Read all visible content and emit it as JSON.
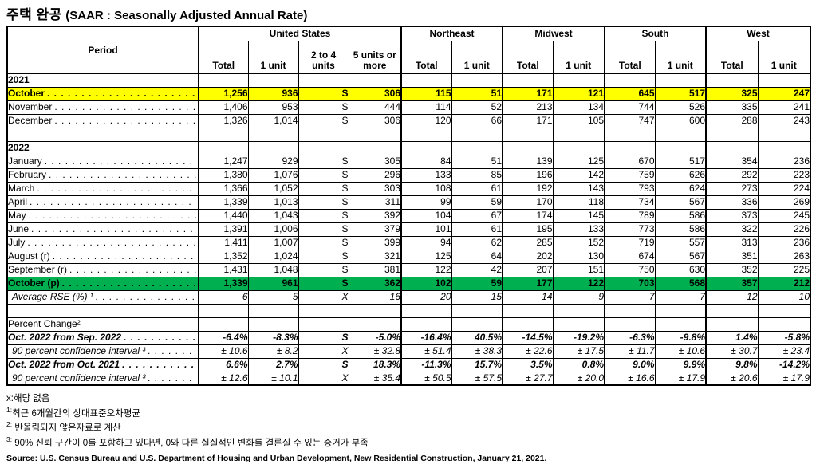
{
  "title": {
    "ko": "주택 완공",
    "en": "(SAAR : Seasonally Adjusted Annual Rate)"
  },
  "table": {
    "period_label": "Period",
    "groups": [
      {
        "label": "United States",
        "span": 4
      },
      {
        "label": "Northeast",
        "span": 2
      },
      {
        "label": "Midwest",
        "span": 2
      },
      {
        "label": "South",
        "span": 2
      },
      {
        "label": "West",
        "span": 2
      }
    ],
    "sub_headers": [
      "Total",
      "1 unit",
      "2 to 4 units",
      "5 units or more",
      "Total",
      "1 unit",
      "Total",
      "1 unit",
      "Total",
      "1 unit",
      "Total",
      "1 unit"
    ],
    "rows": [
      {
        "type": "year",
        "label": "2021"
      },
      {
        "type": "data",
        "label": "October",
        "dots": true,
        "highlight": "yellow",
        "values": [
          "1,256",
          "936",
          "S",
          "306",
          "115",
          "51",
          "171",
          "121",
          "645",
          "517",
          "325",
          "247"
        ]
      },
      {
        "type": "data",
        "label": "November",
        "dots": true,
        "values": [
          "1,406",
          "953",
          "S",
          "444",
          "114",
          "52",
          "213",
          "134",
          "744",
          "526",
          "335",
          "241"
        ]
      },
      {
        "type": "data",
        "label": "December",
        "dots": true,
        "values": [
          "1,326",
          "1,014",
          "S",
          "306",
          "120",
          "66",
          "171",
          "105",
          "747",
          "600",
          "288",
          "243"
        ]
      },
      {
        "type": "blank"
      },
      {
        "type": "year",
        "label": "2022"
      },
      {
        "type": "data",
        "label": "January",
        "dots": true,
        "values": [
          "1,247",
          "929",
          "S",
          "305",
          "84",
          "51",
          "139",
          "125",
          "670",
          "517",
          "354",
          "236"
        ]
      },
      {
        "type": "data",
        "label": "February",
        "dots": true,
        "values": [
          "1,380",
          "1,076",
          "S",
          "296",
          "133",
          "85",
          "196",
          "142",
          "759",
          "626",
          "292",
          "223"
        ]
      },
      {
        "type": "data",
        "label": "March",
        "dots": true,
        "values": [
          "1,366",
          "1,052",
          "S",
          "303",
          "108",
          "61",
          "192",
          "143",
          "793",
          "624",
          "273",
          "224"
        ]
      },
      {
        "type": "data",
        "label": "April",
        "dots": true,
        "values": [
          "1,339",
          "1,013",
          "S",
          "311",
          "99",
          "59",
          "170",
          "118",
          "734",
          "567",
          "336",
          "269"
        ]
      },
      {
        "type": "data",
        "label": "May",
        "dots": true,
        "values": [
          "1,440",
          "1,043",
          "S",
          "392",
          "104",
          "67",
          "174",
          "145",
          "789",
          "586",
          "373",
          "245"
        ]
      },
      {
        "type": "data",
        "label": "June",
        "dots": true,
        "values": [
          "1,391",
          "1,006",
          "S",
          "379",
          "101",
          "61",
          "195",
          "133",
          "773",
          "586",
          "322",
          "226"
        ]
      },
      {
        "type": "data",
        "label": "July",
        "dots": true,
        "values": [
          "1,411",
          "1,007",
          "S",
          "399",
          "94",
          "62",
          "285",
          "152",
          "719",
          "557",
          "313",
          "236"
        ]
      },
      {
        "type": "data",
        "label": "August (r)",
        "dots": true,
        "values": [
          "1,352",
          "1,024",
          "S",
          "321",
          "125",
          "64",
          "202",
          "130",
          "674",
          "567",
          "351",
          "263"
        ]
      },
      {
        "type": "data",
        "label": "September (r)",
        "dots": true,
        "values": [
          "1,431",
          "1,048",
          "S",
          "381",
          "122",
          "42",
          "207",
          "151",
          "750",
          "630",
          "352",
          "225"
        ]
      },
      {
        "type": "data",
        "label": "October (p)",
        "dots": true,
        "highlight": "green",
        "values": [
          "1,339",
          "961",
          "S",
          "362",
          "102",
          "59",
          "177",
          "122",
          "703",
          "568",
          "357",
          "212"
        ]
      },
      {
        "type": "data",
        "label": "Average RSE (%) ¹",
        "dots": true,
        "style": "italic",
        "indent": true,
        "values": [
          "6",
          "5",
          "X",
          "16",
          "20",
          "15",
          "14",
          "9",
          "7",
          "7",
          "12",
          "10"
        ]
      },
      {
        "type": "blank"
      },
      {
        "type": "section",
        "label": "Percent Change²"
      },
      {
        "type": "data",
        "label": "Oct. 2022 from Sep. 2022",
        "dots": true,
        "style": "bold-italic",
        "values": [
          "-6.4%",
          "-8.3%",
          "S",
          "-5.0%",
          "-16.4%",
          "40.5%",
          "-14.5%",
          "-19.2%",
          "-6.3%",
          "-9.8%",
          "1.4%",
          "-5.8%"
        ]
      },
      {
        "type": "data",
        "label": "90 percent confidence interval ³",
        "dots": true,
        "style": "italic",
        "indent": true,
        "values": [
          "± 10.6",
          "± 8.2",
          "X",
          "± 32.8",
          "± 51.4",
          "± 38.3",
          "± 22.6",
          "± 17.5",
          "± 11.7",
          "± 10.6",
          "± 30.7",
          "± 23.4"
        ]
      },
      {
        "type": "data",
        "label": "Oct. 2022 from Oct. 2021",
        "dots": true,
        "style": "bold-italic",
        "values": [
          "6.6%",
          "2.7%",
          "S",
          "18.3%",
          "-11.3%",
          "15.7%",
          "3.5%",
          "0.8%",
          "9.0%",
          "9.9%",
          "9.8%",
          "-14.2%"
        ]
      },
      {
        "type": "data",
        "label": "90 percent confidence interval ³",
        "dots": true,
        "style": "italic",
        "indent": true,
        "values": [
          "± 12.6",
          "± 10.1",
          "X",
          "± 35.4",
          "± 50.5",
          "± 57.5",
          "± 27.7",
          "± 20.0",
          "± 16.6",
          "± 17.9",
          "± 20.6",
          "± 17.9"
        ]
      }
    ]
  },
  "footnotes": [
    {
      "marker": "",
      "text": "x:해당 없음"
    },
    {
      "marker": "1:",
      "text": "최근 6개월간의 상대표준오차평균"
    },
    {
      "marker": "2:",
      "text": " 반올림되지 않은자료로 계산"
    },
    {
      "marker": "3:",
      "text": " 90% 신뢰 구간이 0를 포함하고 있다면, 0와 다른 실질적인 변화를 결론질 수 있는 증거가 부족"
    }
  ],
  "source": "Source: U.S. Census Bureau and U.S. Department of Housing and Urban Development, New Residential Construction, January 21, 2021.",
  "colors": {
    "highlight_yellow": "#FFFF00",
    "highlight_green": "#00B050",
    "border": "#000000"
  }
}
